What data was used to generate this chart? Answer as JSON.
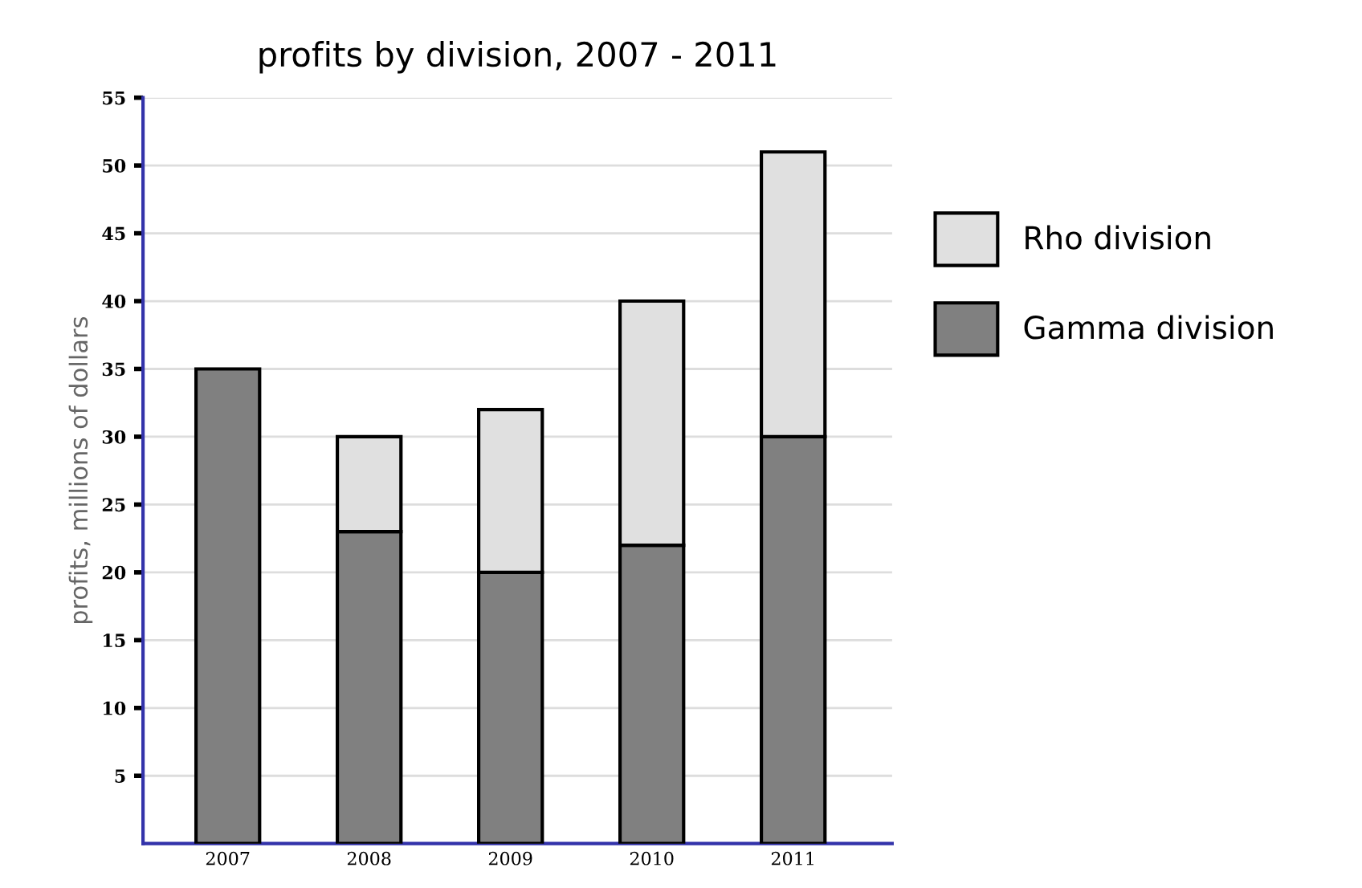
{
  "chart_data": {
    "type": "bar",
    "title": "profits by division, 2007 - 2011",
    "ylabel": "profits, millions of dollars",
    "categories": [
      "2007",
      "2008",
      "2009",
      "2010",
      "2011"
    ],
    "series": [
      {
        "name": "Gamma division",
        "color": "#808080",
        "values": [
          35,
          23,
          20,
          22,
          30
        ]
      },
      {
        "name": "Rho division",
        "color": "#e0e0e0",
        "values": [
          null,
          7,
          12,
          18,
          21
        ]
      }
    ],
    "stacked": true,
    "ylim": [
      0,
      55
    ],
    "yticks": [
      5,
      10,
      15,
      20,
      25,
      30,
      35,
      40,
      45,
      50,
      55
    ],
    "grid": "y",
    "legend": "right"
  }
}
